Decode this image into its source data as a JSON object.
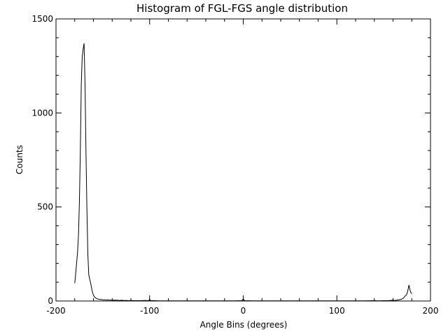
{
  "chart_data": {
    "type": "line",
    "title": "Histogram of FGL-FGS angle distribution",
    "xlabel": "Angle Bins (degrees)",
    "ylabel": "Counts",
    "xlim": [
      -200,
      200
    ],
    "ylim": [
      0,
      1500
    ],
    "xticks": [
      -200,
      -100,
      0,
      100,
      200
    ],
    "yticks": [
      0,
      500,
      1000,
      1500
    ],
    "line_color": "#000000",
    "series": [
      {
        "x": [
          -180,
          -179,
          -178,
          -177,
          -176,
          -175,
          -174,
          -173,
          -172,
          -171,
          -170,
          -169,
          -168,
          -167,
          -166,
          -165,
          -164,
          -163,
          -162,
          -161,
          -160,
          -159,
          -158,
          -157,
          -156,
          -155,
          -154,
          -153,
          -152,
          -151,
          -150,
          -148,
          -146,
          -144,
          -142,
          -140,
          -138,
          -136,
          -134,
          -132,
          -130,
          -128,
          -126,
          -124,
          -122,
          -120,
          -115,
          -110,
          -105,
          -101,
          -100,
          -99,
          -95,
          -90,
          -80,
          -70,
          -60,
          -50,
          -40,
          -30,
          -20,
          -10,
          -2,
          -1,
          0,
          1,
          2,
          10,
          20,
          30,
          40,
          50,
          60,
          70,
          80,
          90,
          100,
          110,
          120,
          130,
          140,
          145,
          150,
          155,
          160,
          162,
          164,
          166,
          168,
          170,
          171,
          172,
          173,
          174,
          175,
          176,
          177,
          178,
          179,
          180
        ],
        "values": [
          95,
          145,
          200,
          260,
          350,
          520,
          800,
          1150,
          1300,
          1340,
          1370,
          1150,
          800,
          500,
          250,
          140,
          115,
          95,
          70,
          45,
          32,
          22,
          18,
          14,
          12,
          10,
          9,
          8,
          9,
          7,
          6,
          6,
          5,
          6,
          5,
          4,
          5,
          4,
          4,
          3,
          4,
          3,
          3,
          3,
          2,
          3,
          2,
          2,
          3,
          2,
          10,
          2,
          2,
          1,
          1,
          1,
          1,
          1,
          1,
          1,
          1,
          1,
          2,
          4,
          12,
          4,
          2,
          1,
          1,
          1,
          1,
          1,
          1,
          1,
          1,
          1,
          1,
          1,
          1,
          1,
          2,
          1,
          2,
          2,
          4,
          3,
          5,
          6,
          8,
          12,
          15,
          20,
          28,
          30,
          40,
          60,
          85,
          60,
          45,
          38
        ]
      }
    ]
  }
}
